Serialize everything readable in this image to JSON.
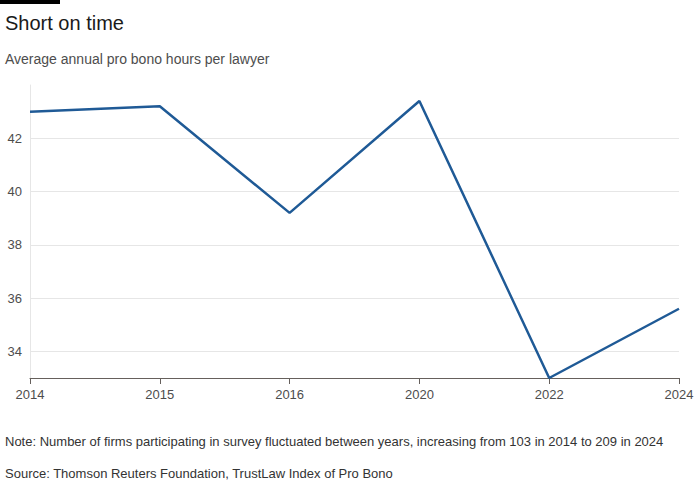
{
  "chart_data": {
    "type": "line",
    "title": "Short on time",
    "subtitle": "Average annual pro bono hours per lawyer",
    "categories": [
      "2014",
      "2015",
      "2016",
      "2020",
      "2022",
      "2024"
    ],
    "values": [
      43.0,
      43.2,
      39.2,
      43.4,
      33.0,
      35.6
    ],
    "color": "#1f5a96",
    "ylim": [
      33,
      44
    ],
    "yticks": [
      34,
      36,
      38,
      40,
      42
    ],
    "grid": true,
    "note": "Note: Number of firms participating in survey fluctuated between years, increasing from 103 in 2014 to 209 in 2024",
    "source": "Source: Thomson Reuters Foundation, TrustLaw Index of Pro Bono"
  }
}
